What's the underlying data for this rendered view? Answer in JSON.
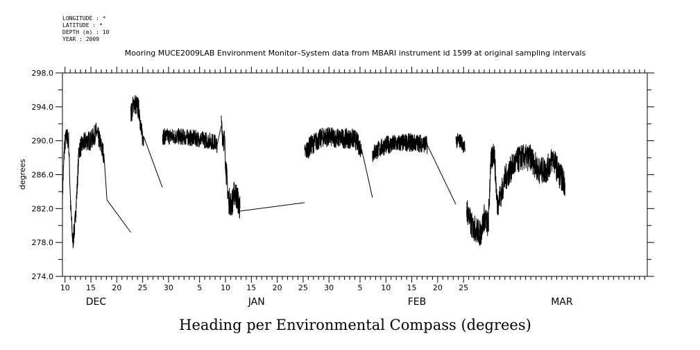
{
  "header": {
    "meta": [
      "LONGITUDE : *",
      "LATITUDE : *",
      "DEPTH (m) : 10",
      "YEAR : 2009"
    ],
    "title": "Mooring MUCE2009LAB Environment Monitor–System data from MBARI instrument id 1599 at original sampling intervals"
  },
  "caption": "Heading per Environmental Compass (degrees)",
  "chart_data": {
    "type": "line",
    "ylabel": "degrees",
    "xlabel": "",
    "ylim": [
      274.0,
      298.0
    ],
    "y_ticks": [
      "274.0",
      "278.0",
      "282.0",
      "286.0",
      "290.0",
      "294.0",
      "298.0"
    ],
    "x_range_days": [
      -22.5,
      90.5
    ],
    "x_tick_labels": [
      {
        "day": -22,
        "label": "10"
      },
      {
        "day": -17,
        "label": "15"
      },
      {
        "day": -12,
        "label": "20"
      },
      {
        "day": -7,
        "label": "25"
      },
      {
        "day": -2,
        "label": "30"
      },
      {
        "day": 4,
        "label": "5"
      },
      {
        "day": 9,
        "label": "10"
      },
      {
        "day": 14,
        "label": "15"
      },
      {
        "day": 19,
        "label": "20"
      },
      {
        "day": 24,
        "label": "25"
      },
      {
        "day": 29,
        "label": "30"
      },
      {
        "day": 35,
        "label": "5"
      },
      {
        "day": 40,
        "label": "10"
      },
      {
        "day": 45,
        "label": "15"
      },
      {
        "day": 50,
        "label": "20"
      },
      {
        "day": 55,
        "label": "25"
      }
    ],
    "month_labels": [
      {
        "day": -16,
        "label": "DEC"
      },
      {
        "day": 15,
        "label": "JAN"
      },
      {
        "day": 46,
        "label": "FEB"
      },
      {
        "day": 74,
        "label": "MAR"
      }
    ],
    "series": [
      {
        "name": "",
        "segments": [
          {
            "noisy": true,
            "amp": 1.2,
            "points": [
              [
                -22.5,
                283.5
              ],
              [
                -22.1,
                289.5
              ],
              [
                -21.7,
                290.5
              ],
              [
                -21.3,
                290.0
              ],
              [
                -20.9,
                282.0
              ],
              [
                -20.5,
                278.0
              ],
              [
                -20.1,
                280.0
              ],
              [
                -19.7,
                284.0
              ],
              [
                -19.3,
                289.0
              ],
              [
                -18.0,
                290.0
              ],
              [
                -17.0,
                290.0
              ],
              [
                -16.0,
                291.0
              ],
              [
                -15.3,
                290.0
              ],
              [
                -14.9,
                289.0
              ],
              [
                -14.5,
                288.5
              ]
            ]
          },
          {
            "noisy": false,
            "amp": 0,
            "points": [
              [
                -14.5,
                288.5
              ],
              [
                -13.9,
                283.0
              ],
              [
                -9.3,
                279.2
              ]
            ]
          },
          {
            "noisy": true,
            "amp": 1.3,
            "points": [
              [
                -9.3,
                293.0
              ],
              [
                -8.7,
                294.5
              ],
              [
                -8.0,
                294.0
              ],
              [
                -7.6,
                293.5
              ],
              [
                -7.3,
                291.0
              ],
              [
                -7.0,
                290.5
              ],
              [
                -6.8,
                290.5
              ]
            ]
          },
          {
            "noisy": false,
            "amp": 0,
            "points": [
              [
                -6.8,
                290.5
              ],
              [
                -3.2,
                284.5
              ]
            ]
          },
          {
            "noisy": true,
            "amp": 1.0,
            "points": [
              [
                -3.2,
                290.5
              ],
              [
                0,
                290.5
              ],
              [
                3.0,
                290.3
              ],
              [
                6.0,
                290.0
              ],
              [
                7.0,
                289.8
              ],
              [
                7.4,
                289.5
              ]
            ]
          },
          {
            "noisy": false,
            "amp": 0,
            "points": [
              [
                7.4,
                289.5
              ],
              [
                8.2,
                291.8
              ]
            ]
          },
          {
            "noisy": true,
            "amp": 1.6,
            "points": [
              [
                8.2,
                291.5
              ],
              [
                8.8,
                290.0
              ],
              [
                9.2,
                286.0
              ],
              [
                9.6,
                283.0
              ],
              [
                10.2,
                282.5
              ],
              [
                10.8,
                284.0
              ],
              [
                11.4,
                283.0
              ],
              [
                11.8,
                282.0
              ]
            ]
          },
          {
            "noisy": false,
            "amp": 0,
            "points": [
              [
                11.8,
                281.7
              ],
              [
                24.3,
                282.7
              ]
            ]
          },
          {
            "noisy": true,
            "amp": 1.2,
            "points": [
              [
                24.3,
                288.5
              ],
              [
                25.5,
                289.5
              ],
              [
                28.0,
                290.5
              ],
              [
                31.0,
                290.3
              ],
              [
                34.0,
                290.2
              ],
              [
                35.3,
                289.0
              ]
            ]
          },
          {
            "noisy": false,
            "amp": 0,
            "points": [
              [
                35.3,
                289.0
              ],
              [
                37.4,
                283.3
              ]
            ]
          },
          {
            "noisy": true,
            "amp": 1.1,
            "points": [
              [
                37.4,
                288.5
              ],
              [
                40.0,
                289.5
              ],
              [
                44.0,
                289.8
              ],
              [
                47.0,
                289.7
              ],
              [
                48.0,
                289.5
              ]
            ]
          },
          {
            "noisy": false,
            "amp": 0,
            "points": [
              [
                48.0,
                289.5
              ],
              [
                53.5,
                282.5
              ]
            ]
          },
          {
            "noisy": true,
            "amp": 0.9,
            "points": [
              [
                53.5,
                290.0
              ],
              [
                54.5,
                290.0
              ],
              [
                55.3,
                289.0
              ]
            ]
          },
          {
            "noisy": true,
            "amp": 1.6,
            "points": [
              [
                55.6,
                282.0
              ],
              [
                56.5,
                280.0
              ],
              [
                57.5,
                279.5
              ],
              [
                58.3,
                279.0
              ],
              [
                59.0,
                281.0
              ],
              [
                59.8,
                280.0
              ],
              [
                60.2,
                287.0
              ],
              [
                60.9,
                289.0
              ],
              [
                61.5,
                282.5
              ],
              [
                62.4,
                284.0
              ],
              [
                63.0,
                285.5
              ],
              [
                64.5,
                287.0
              ],
              [
                66.0,
                288.0
              ],
              [
                68.0,
                288.0
              ],
              [
                69.5,
                286.5
              ],
              [
                71.0,
                286.5
              ],
              [
                72.3,
                288.0
              ],
              [
                73.5,
                286.0
              ],
              [
                74.6,
                285.0
              ]
            ]
          }
        ]
      }
    ]
  }
}
